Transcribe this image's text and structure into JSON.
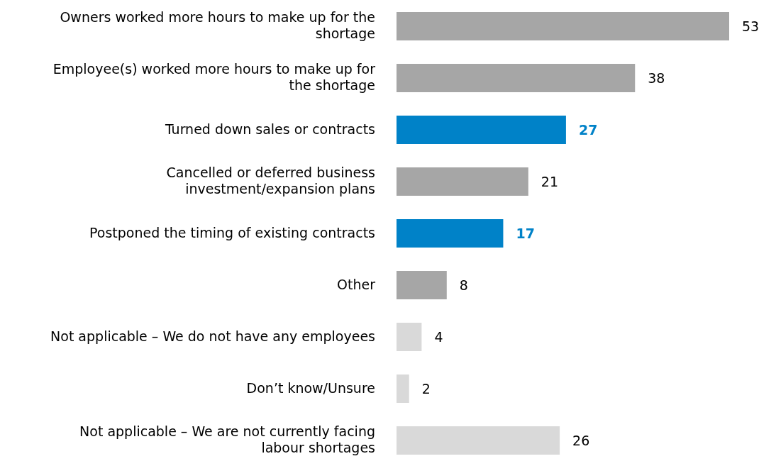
{
  "chart_data": {
    "type": "bar",
    "orientation": "horizontal",
    "data_labels": true,
    "categories": [
      "Owners worked more hours to make up for the shortage",
      "Employee(s) worked more hours to make up for the shortage",
      "Turned down sales or contracts",
      "Cancelled or deferred business investment/expansion plans",
      "Postponed the timing of existing contracts",
      "Other",
      "Not applicable – We do not have any employees",
      "Don’t know/Unsure",
      "Not applicable – We are not currently facing labour shortages"
    ],
    "values": [
      53,
      38,
      27,
      21,
      17,
      8,
      4,
      2,
      26
    ],
    "colors": [
      "#a6a6a6",
      "#a6a6a6",
      "#0082c8",
      "#a6a6a6",
      "#0082c8",
      "#a6a6a6",
      "#d9d9d9",
      "#d9d9d9",
      "#d9d9d9"
    ]
  }
}
